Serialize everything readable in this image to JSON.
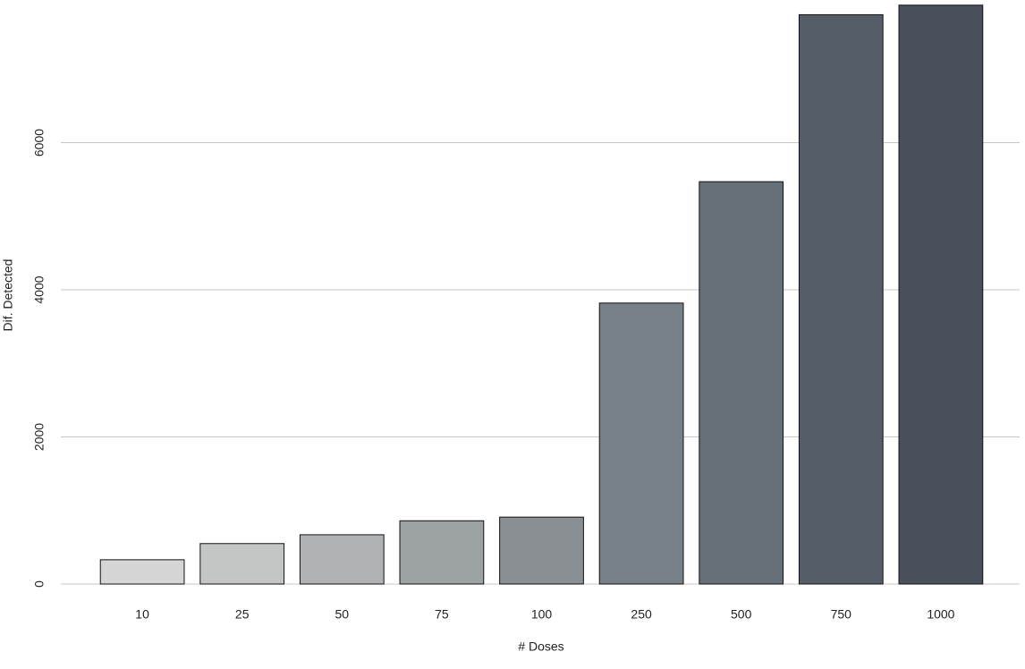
{
  "chart_data": {
    "type": "bar",
    "x_label": "# Doses",
    "y_label": "Dif. Detected",
    "categories": [
      "10",
      "25",
      "50",
      "75",
      "100",
      "250",
      "500",
      "750",
      "1000"
    ],
    "values": [
      330,
      550,
      670,
      860,
      910,
      3820,
      5470,
      7740,
      7870
    ],
    "colors": [
      "#d6d6d6",
      "#c4c5c5",
      "#b0b2b3",
      "#9da2a3",
      "#898f93",
      "#788187",
      "#657079",
      "#555e68",
      "#4a4f5c"
    ],
    "ylim": [
      0,
      7940
    ],
    "yticks": [
      0,
      2000,
      4000,
      6000
    ],
    "grid": true
  }
}
